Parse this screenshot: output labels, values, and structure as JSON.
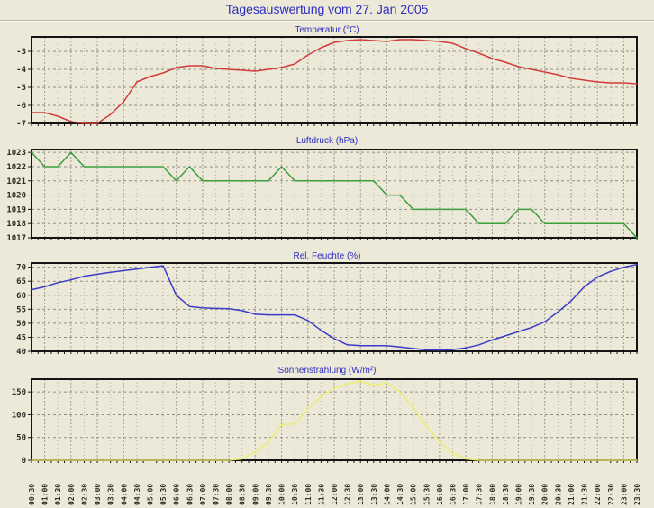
{
  "page": {
    "title": "Tagesauswertung vom 27. Jan 2005",
    "background": "#ece9d8",
    "title_color": "#2d2dbe"
  },
  "x_axis": {
    "labels": [
      "00:30",
      "01:00",
      "01:30",
      "02:00",
      "02:30",
      "03:00",
      "03:30",
      "04:00",
      "04:30",
      "05:00",
      "05:30",
      "06:00",
      "06:30",
      "07:00",
      "07:30",
      "08:00",
      "08:30",
      "09:00",
      "09:30",
      "10:00",
      "10:30",
      "11:00",
      "11:30",
      "12:00",
      "12:30",
      "13:00",
      "13:30",
      "14:00",
      "14:30",
      "15:00",
      "15:30",
      "16:00",
      "16:30",
      "17:00",
      "17:30",
      "18:00",
      "18:30",
      "19:00",
      "19:30",
      "20:00",
      "20:30",
      "21:00",
      "21:30",
      "22:00",
      "22:30",
      "23:00",
      "23:30"
    ]
  },
  "chart_data": [
    {
      "type": "line",
      "title": "Temperatur (°C)",
      "color": "#d23c3c",
      "y_ticks": [
        -3,
        -4,
        -5,
        -6,
        -7
      ],
      "ylim": [
        -7,
        -2.2
      ],
      "grid": true,
      "values": [
        -6.4,
        -6.4,
        -6.6,
        -6.9,
        -7.0,
        -7.0,
        -6.5,
        -5.8,
        -4.7,
        -4.4,
        -4.2,
        -3.9,
        -3.8,
        -3.8,
        -3.95,
        -4.0,
        -4.05,
        -4.1,
        -4.0,
        -3.9,
        -3.7,
        -3.2,
        -2.8,
        -2.5,
        -2.4,
        -2.35,
        -2.4,
        -2.45,
        -2.35,
        -2.35,
        -2.4,
        -2.45,
        -2.55,
        -2.85,
        -3.1,
        -3.4,
        -3.6,
        -3.85,
        -4.0,
        -4.15,
        -4.3,
        -4.5,
        -4.6,
        -4.7,
        -4.75,
        -4.75,
        -4.8
      ]
    },
    {
      "type": "line",
      "title": "Luftdruck (hPa)",
      "color": "#3c9e3c",
      "y_ticks": [
        1023,
        1022,
        1021,
        1020,
        1019,
        1018,
        1017
      ],
      "ylim": [
        1017,
        1023.2
      ],
      "grid": true,
      "values": [
        1023,
        1022,
        1022,
        1023,
        1022,
        1022,
        1022,
        1022,
        1022,
        1022,
        1022,
        1021,
        1022,
        1021,
        1021,
        1021,
        1021,
        1021,
        1021,
        1022,
        1021,
        1021,
        1021,
        1021,
        1021,
        1021,
        1021,
        1020,
        1020,
        1019,
        1019,
        1019,
        1019,
        1019,
        1018,
        1018,
        1018,
        1019,
        1019,
        1018,
        1018,
        1018,
        1018,
        1018,
        1018,
        1018,
        1017
      ]
    },
    {
      "type": "line",
      "title": "Rel. Feuchte (%)",
      "color": "#3c3cc8",
      "y_ticks": [
        70,
        65,
        60,
        55,
        50,
        45,
        40
      ],
      "ylim": [
        40,
        71.5
      ],
      "grid": true,
      "values": [
        62,
        63,
        64.5,
        65.5,
        66.8,
        67.5,
        68.2,
        68.8,
        69.3,
        70,
        70.5,
        60,
        56,
        55.5,
        55.3,
        55.2,
        54.5,
        53.2,
        53,
        53,
        53,
        51,
        47.5,
        44.5,
        42.3,
        42,
        42,
        42,
        41.5,
        41,
        40.5,
        40.4,
        40.6,
        41.2,
        42.3,
        44,
        45.5,
        47,
        48.5,
        50.5,
        54,
        58,
        63,
        66.5,
        68.5,
        70,
        71
      ]
    },
    {
      "type": "line",
      "title": "Sonnenstrahlung (W/m²)",
      "color": "#eded72",
      "y_ticks": [
        150,
        100,
        50,
        0
      ],
      "ylim": [
        0,
        178
      ],
      "grid": true,
      "values": [
        0,
        0,
        0,
        0,
        0,
        0,
        0,
        0,
        0,
        0,
        0,
        0,
        0,
        0,
        0,
        0,
        3,
        18,
        40,
        78,
        80,
        112,
        140,
        158,
        168,
        173,
        165,
        170,
        150,
        115,
        75,
        40,
        15,
        3,
        0,
        0,
        0,
        0,
        0,
        0,
        0,
        0,
        0,
        0,
        0,
        0,
        0
      ]
    }
  ]
}
